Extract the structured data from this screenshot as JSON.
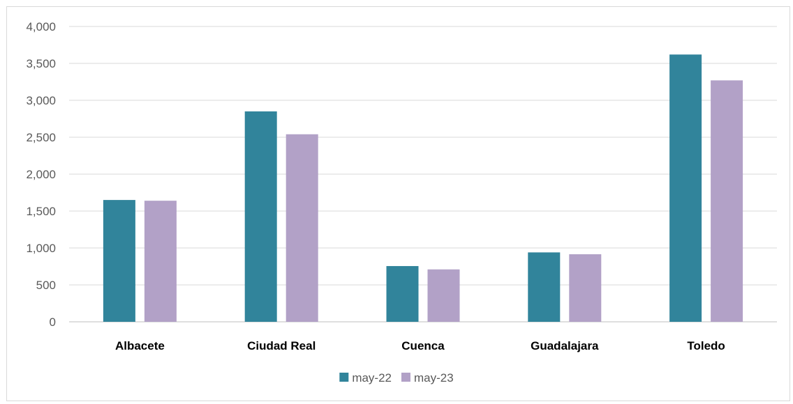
{
  "chart_data": {
    "type": "bar",
    "title": "",
    "xlabel": "",
    "ylabel": "",
    "categories": [
      "Albacete",
      "Ciudad Real",
      "Cuenca",
      "Guadalajara",
      "Toledo"
    ],
    "series": [
      {
        "name": "may-22",
        "color": "#31849b",
        "values": [
          1650,
          2850,
          755,
          940,
          3620
        ]
      },
      {
        "name": "may-23",
        "color": "#b2a1c7",
        "values": [
          1640,
          2540,
          710,
          915,
          3270
        ]
      }
    ],
    "ylim": [
      0,
      4000
    ],
    "yticks": [
      0,
      500,
      1000,
      1500,
      2000,
      2500,
      3000,
      3500,
      4000
    ],
    "ytick_labels": [
      "0",
      "500",
      "1,000",
      "1,500",
      "2,000",
      "2,500",
      "3,000",
      "3,500",
      "4,000"
    ],
    "grid": true,
    "legend_position": "bottom"
  }
}
